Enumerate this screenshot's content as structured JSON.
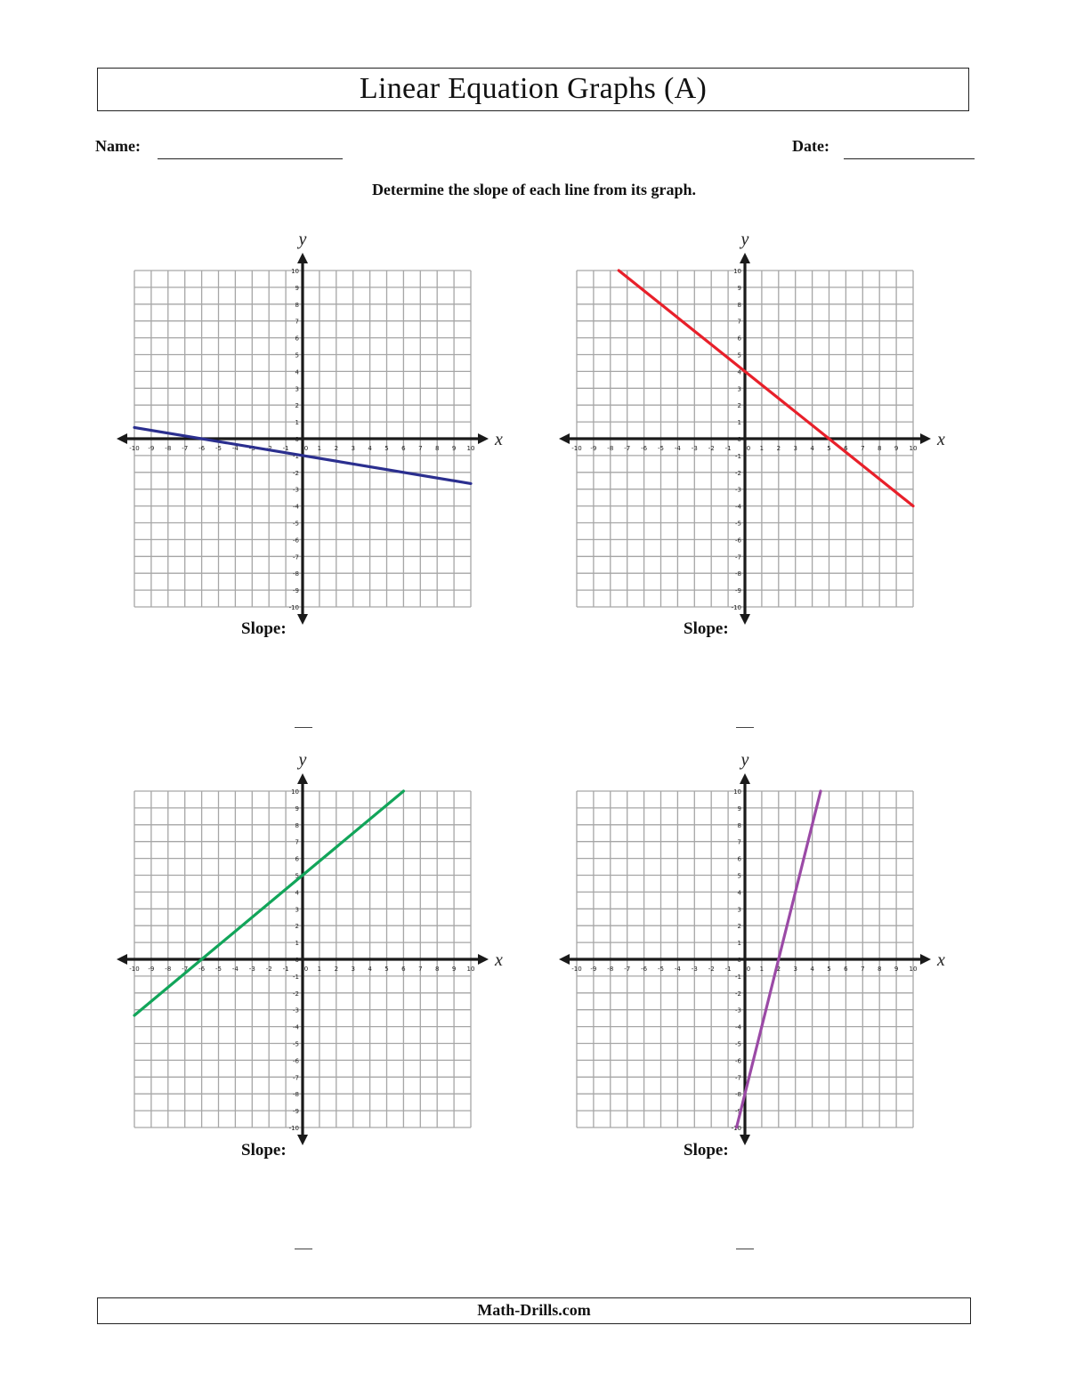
{
  "worksheet": {
    "title": "Linear Equation Graphs (A)",
    "name_label": "Name:",
    "date_label": "Date:",
    "instructions": "Determine the slope of each line from its graph.",
    "footer": "Math-Drills.com",
    "slope_label": "Slope:",
    "answer_blank": "—"
  },
  "axis": {
    "x_label": "x",
    "y_label": "y",
    "min": -10,
    "max": 10,
    "grid_color": "#a6a6a6",
    "axis_color": "#1a1a1a"
  },
  "chart_data": [
    {
      "type": "line",
      "title": "Graph 1",
      "xlabel": "x",
      "ylabel": "y",
      "xlim": [
        -10,
        10
      ],
      "ylim": [
        -10,
        10
      ],
      "grid": true,
      "color": "#2b2f8f",
      "points": [
        [
          -10,
          0.667
        ],
        [
          10,
          -2.667
        ]
      ],
      "key_points": [
        [
          -6,
          0
        ],
        [
          0,
          -1
        ]
      ],
      "slope": "-1/6"
    },
    {
      "type": "line",
      "title": "Graph 2",
      "xlabel": "x",
      "ylabel": "y",
      "xlim": [
        -10,
        10
      ],
      "ylim": [
        -10,
        10
      ],
      "grid": true,
      "color": "#e8202a",
      "points": [
        [
          -7.5,
          10
        ],
        [
          10,
          -4
        ]
      ],
      "key_points": [
        [
          0,
          4
        ],
        [
          5,
          0
        ]
      ],
      "slope": "-4/5"
    },
    {
      "type": "line",
      "title": "Graph 3",
      "xlabel": "x",
      "ylabel": "y",
      "xlim": [
        -10,
        10
      ],
      "ylim": [
        -10,
        10
      ],
      "grid": true,
      "color": "#12a55a",
      "points": [
        [
          -10,
          -3.333
        ],
        [
          6,
          10
        ]
      ],
      "key_points": [
        [
          -6,
          0
        ],
        [
          0,
          5
        ]
      ],
      "slope": "5/6"
    },
    {
      "type": "line",
      "title": "Graph 4",
      "xlabel": "x",
      "ylabel": "y",
      "xlim": [
        -10,
        10
      ],
      "ylim": [
        -10,
        10
      ],
      "grid": true,
      "color": "#9b4aa6",
      "points": [
        [
          -0.5,
          -10
        ],
        [
          4.5,
          10
        ]
      ],
      "key_points": [
        [
          0,
          -8
        ],
        [
          2,
          0
        ]
      ],
      "slope": "4"
    }
  ]
}
